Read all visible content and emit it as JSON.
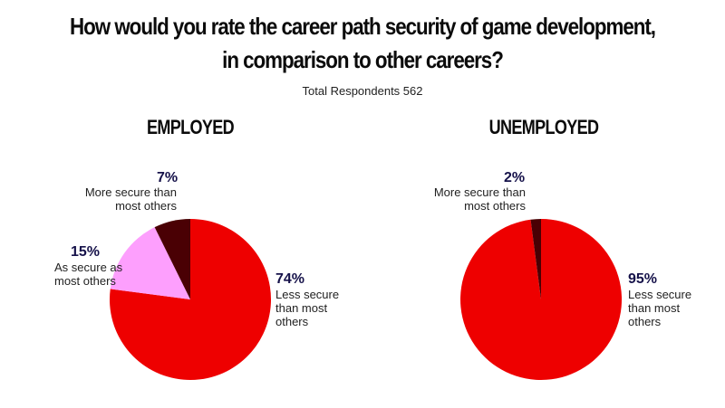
{
  "title_line1": "How would you rate the career path security of game development,",
  "title_line2": "in comparison to other careers?",
  "subtitle": "Total Respondents 562",
  "colors": {
    "less_secure": "#ee0000",
    "as_secure": "#fd9ffd",
    "more_secure": "#4a0004"
  },
  "chart_data": [
    {
      "type": "pie",
      "title": "EMPLOYED",
      "slices": [
        {
          "label_line1": "Less secure",
          "label_line2": "than most",
          "label_line3": "others",
          "value": 74,
          "display": "74%"
        },
        {
          "label_line1": "As secure as",
          "label_line2": "most others",
          "value": 15,
          "display": "15%"
        },
        {
          "label_line1": "More secure than",
          "label_line2": "most others",
          "value": 7,
          "display": "7%"
        }
      ]
    },
    {
      "type": "pie",
      "title": "UNEMPLOYED",
      "slices": [
        {
          "label_line1": "Less secure",
          "label_line2": "than most",
          "label_line3": "others",
          "value": 95,
          "display": "95%"
        },
        {
          "label_line1": "More secure than",
          "label_line2": "most others",
          "value": 2,
          "display": "2%"
        }
      ]
    }
  ]
}
